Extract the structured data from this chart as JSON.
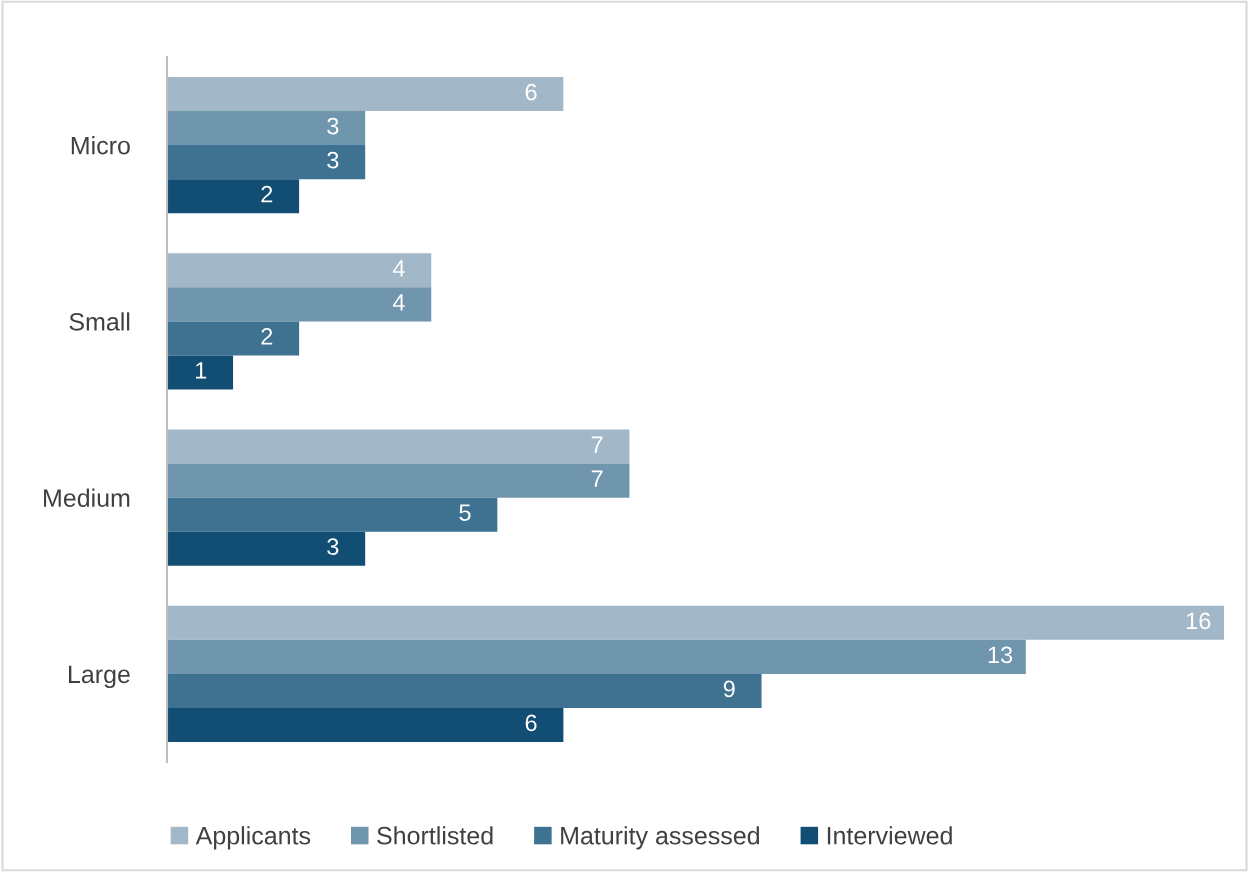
{
  "chart_data": {
    "type": "bar",
    "orientation": "horizontal",
    "categories": [
      "Micro",
      "Small",
      "Medium",
      "Large"
    ],
    "series": [
      {
        "name": "Applicants",
        "color": "#a2b8c8",
        "values": [
          6,
          4,
          7,
          16
        ]
      },
      {
        "name": "Shortlisted",
        "color": "#7096ae",
        "values": [
          3,
          4,
          7,
          13
        ]
      },
      {
        "name": "Maturity assessed",
        "color": "#3f7191",
        "values": [
          3,
          2,
          5,
          9
        ]
      },
      {
        "name": "Interviewed",
        "color": "#124e74",
        "values": [
          2,
          1,
          3,
          6
        ]
      }
    ],
    "xlim": [
      0,
      16
    ],
    "data_labels": true,
    "legend": "bottom",
    "grid": false,
    "tick_labels": "y"
  }
}
